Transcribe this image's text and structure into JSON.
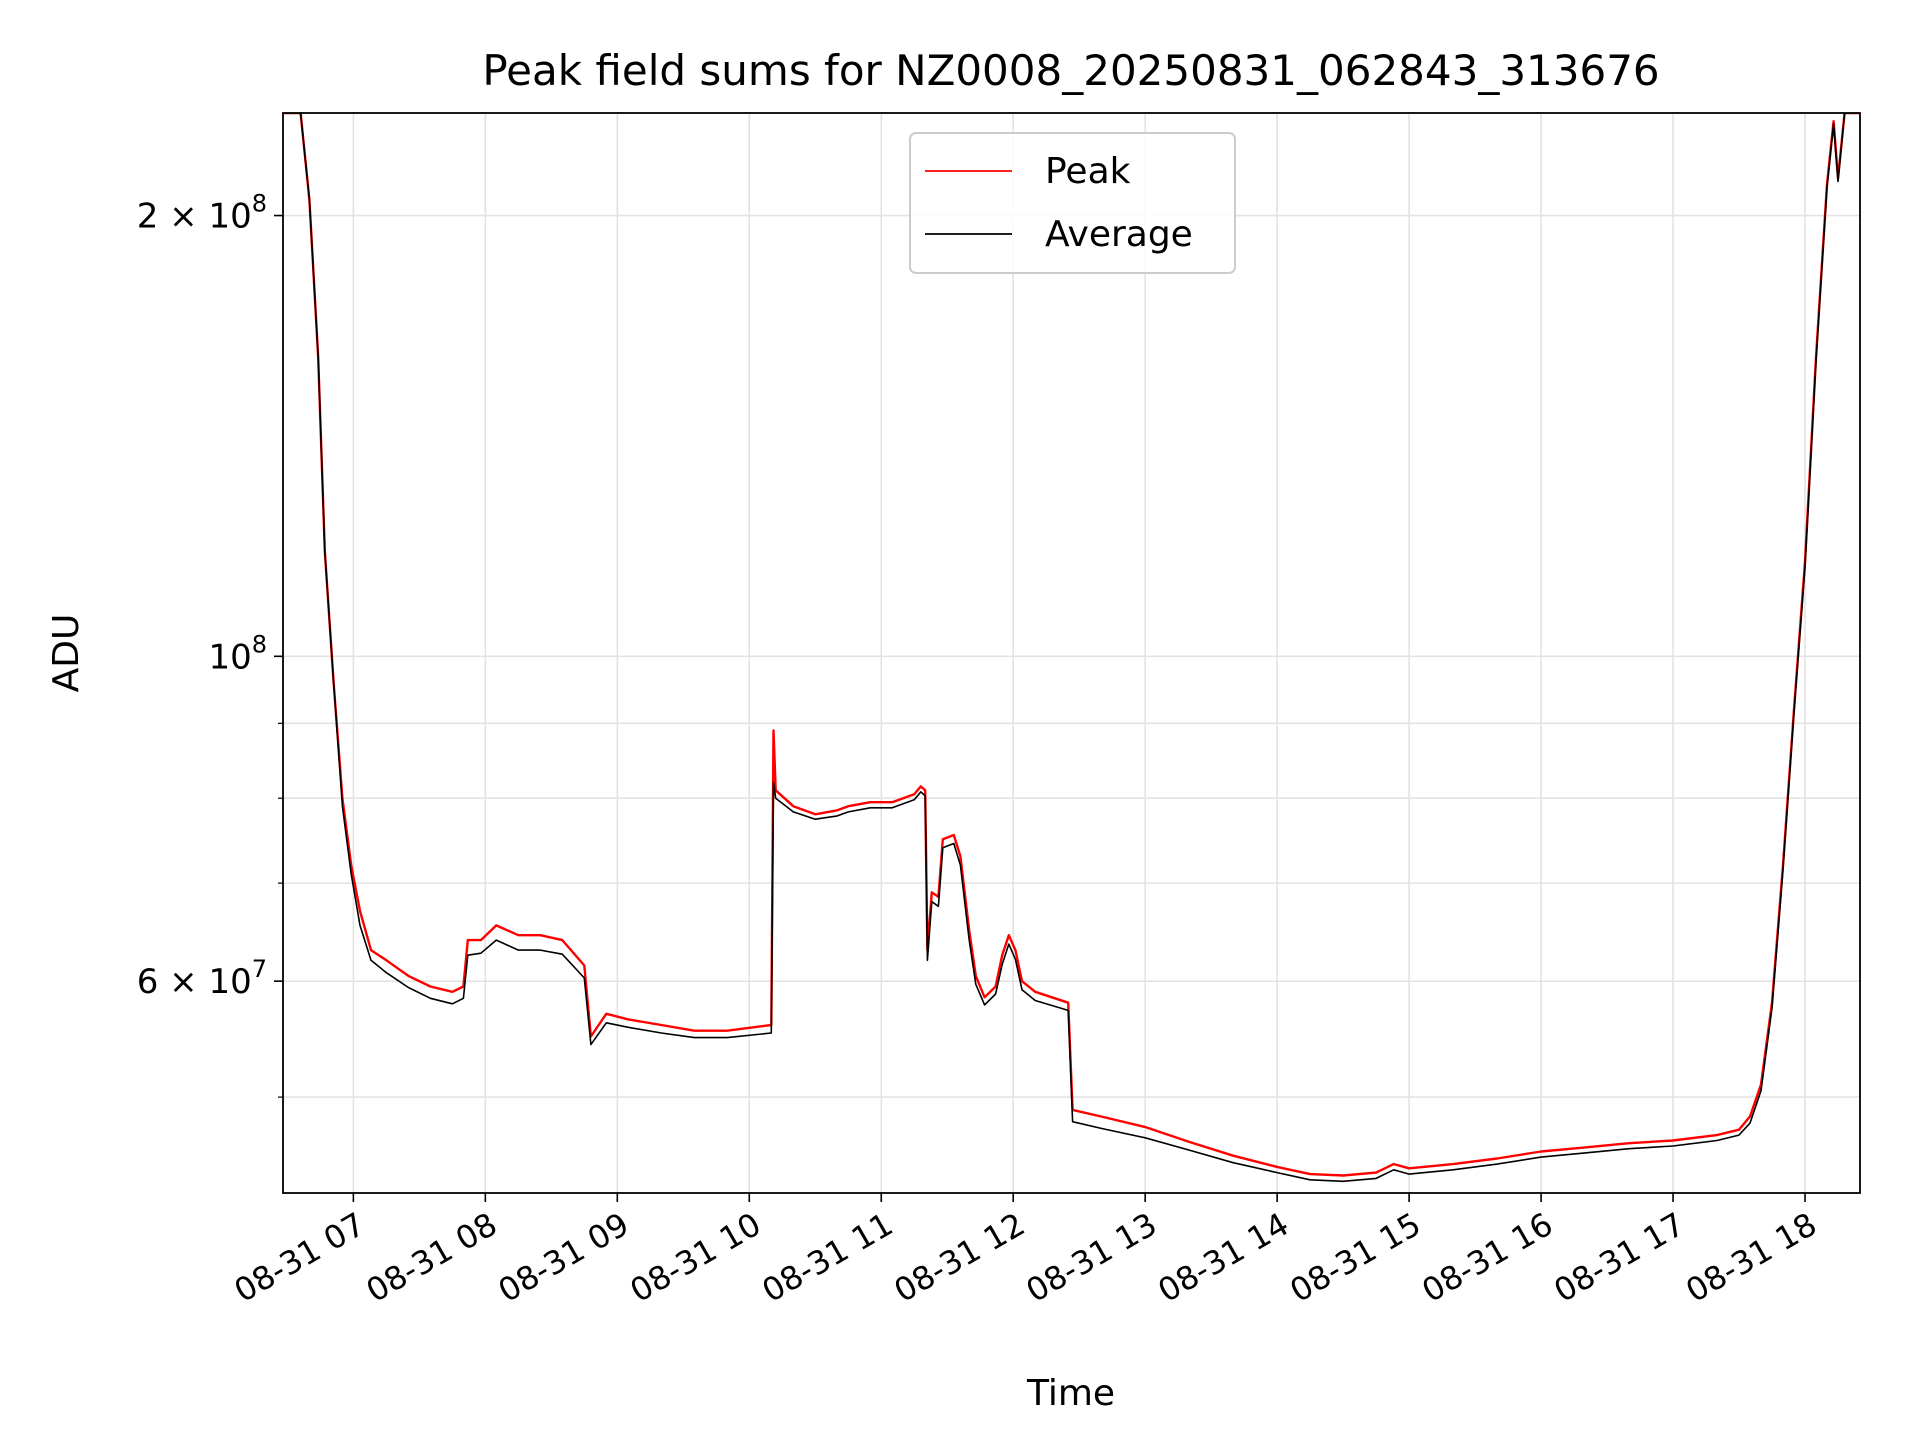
{
  "chart_data": {
    "type": "line",
    "title": "Peak field sums for NZ0008_20250831_062843_313676",
    "xlabel": "Time",
    "ylabel": "ADU",
    "y_scale": "log",
    "grid": true,
    "legend_position": "top-center",
    "x_range": [
      "2025-08-31 06:28",
      "2025-08-31 18:25"
    ],
    "y_range": [
      43000000,
      235000000
    ],
    "x_ticks": [
      {
        "t": "2025-08-31 07:00",
        "label": "08-31 07"
      },
      {
        "t": "2025-08-31 08:00",
        "label": "08-31 08"
      },
      {
        "t": "2025-08-31 09:00",
        "label": "08-31 09"
      },
      {
        "t": "2025-08-31 10:00",
        "label": "08-31 10"
      },
      {
        "t": "2025-08-31 11:00",
        "label": "08-31 11"
      },
      {
        "t": "2025-08-31 12:00",
        "label": "08-31 12"
      },
      {
        "t": "2025-08-31 13:00",
        "label": "08-31 13"
      },
      {
        "t": "2025-08-31 14:00",
        "label": "08-31 14"
      },
      {
        "t": "2025-08-31 15:00",
        "label": "08-31 15"
      },
      {
        "t": "2025-08-31 16:00",
        "label": "08-31 16"
      },
      {
        "t": "2025-08-31 17:00",
        "label": "08-31 17"
      },
      {
        "t": "2025-08-31 18:00",
        "label": "08-31 18"
      }
    ],
    "y_major_ticks": [
      {
        "value": 60000000,
        "base": "6 × 10",
        "exp": "7"
      },
      {
        "value": 100000000,
        "base": "10",
        "exp": "8"
      },
      {
        "value": 200000000,
        "base": "2 × 10",
        "exp": "8"
      }
    ],
    "y_minor_gridlines": [
      50000000,
      70000000,
      80000000,
      90000000
    ],
    "series": [
      {
        "name": "Peak",
        "color": "#ff0000",
        "points": [
          [
            "2025-08-31 06:28",
            235000000
          ],
          [
            "2025-08-31 06:36",
            235000000
          ],
          [
            "2025-08-31 06:40",
            205000000
          ],
          [
            "2025-08-31 06:44",
            160000000
          ],
          [
            "2025-08-31 06:47",
            118000000
          ],
          [
            "2025-08-31 06:51",
            96000000
          ],
          [
            "2025-08-31 06:55",
            80000000
          ],
          [
            "2025-08-31 06:59",
            72000000
          ],
          [
            "2025-08-31 07:03",
            67000000
          ],
          [
            "2025-08-31 07:08",
            63000000
          ],
          [
            "2025-08-31 07:15",
            62000000
          ],
          [
            "2025-08-31 07:25",
            60500000
          ],
          [
            "2025-08-31 07:35",
            59500000
          ],
          [
            "2025-08-31 07:45",
            59000000
          ],
          [
            "2025-08-31 07:50",
            59500000
          ],
          [
            "2025-08-31 07:52",
            64000000
          ],
          [
            "2025-08-31 07:58",
            64000000
          ],
          [
            "2025-08-31 08:05",
            65500000
          ],
          [
            "2025-08-31 08:15",
            64500000
          ],
          [
            "2025-08-31 08:25",
            64500000
          ],
          [
            "2025-08-31 08:35",
            64000000
          ],
          [
            "2025-08-31 08:45",
            61500000
          ],
          [
            "2025-08-31 08:48",
            55000000
          ],
          [
            "2025-08-31 08:55",
            57000000
          ],
          [
            "2025-08-31 09:05",
            56500000
          ],
          [
            "2025-08-31 09:20",
            56000000
          ],
          [
            "2025-08-31 09:35",
            55500000
          ],
          [
            "2025-08-31 09:50",
            55500000
          ],
          [
            "2025-08-31 10:10",
            56000000
          ],
          [
            "2025-08-31 10:11",
            89000000
          ],
          [
            "2025-08-31 10:12",
            81000000
          ],
          [
            "2025-08-31 10:20",
            79000000
          ],
          [
            "2025-08-31 10:30",
            78000000
          ],
          [
            "2025-08-31 10:40",
            78500000
          ],
          [
            "2025-08-31 10:45",
            79000000
          ],
          [
            "2025-08-31 10:55",
            79500000
          ],
          [
            "2025-08-31 11:05",
            79500000
          ],
          [
            "2025-08-31 11:15",
            80500000
          ],
          [
            "2025-08-31 11:18",
            81500000
          ],
          [
            "2025-08-31 11:20",
            81000000
          ],
          [
            "2025-08-31 11:21",
            63000000
          ],
          [
            "2025-08-31 11:23",
            69000000
          ],
          [
            "2025-08-31 11:26",
            68500000
          ],
          [
            "2025-08-31 11:28",
            75000000
          ],
          [
            "2025-08-31 11:33",
            75500000
          ],
          [
            "2025-08-31 11:36",
            73000000
          ],
          [
            "2025-08-31 11:40",
            65000000
          ],
          [
            "2025-08-31 11:43",
            60500000
          ],
          [
            "2025-08-31 11:47",
            58500000
          ],
          [
            "2025-08-31 11:52",
            59500000
          ],
          [
            "2025-08-31 11:55",
            62500000
          ],
          [
            "2025-08-31 11:58",
            64500000
          ],
          [
            "2025-08-31 12:01",
            63000000
          ],
          [
            "2025-08-31 12:04",
            60000000
          ],
          [
            "2025-08-31 12:10",
            59000000
          ],
          [
            "2025-08-31 12:25",
            58000000
          ],
          [
            "2025-08-31 12:27",
            49000000
          ],
          [
            "2025-08-31 12:40",
            48500000
          ],
          [
            "2025-08-31 13:00",
            47700000
          ],
          [
            "2025-08-31 13:20",
            46600000
          ],
          [
            "2025-08-31 13:40",
            45600000
          ],
          [
            "2025-08-31 14:00",
            44800000
          ],
          [
            "2025-08-31 14:15",
            44300000
          ],
          [
            "2025-08-31 14:30",
            44200000
          ],
          [
            "2025-08-31 14:45",
            44400000
          ],
          [
            "2025-08-31 14:53",
            45000000
          ],
          [
            "2025-08-31 15:00",
            44700000
          ],
          [
            "2025-08-31 15:20",
            45000000
          ],
          [
            "2025-08-31 15:40",
            45400000
          ],
          [
            "2025-08-31 16:00",
            45900000
          ],
          [
            "2025-08-31 16:20",
            46200000
          ],
          [
            "2025-08-31 16:40",
            46500000
          ],
          [
            "2025-08-31 17:00",
            46700000
          ],
          [
            "2025-08-31 17:20",
            47100000
          ],
          [
            "2025-08-31 17:30",
            47500000
          ],
          [
            "2025-08-31 17:35",
            48500000
          ],
          [
            "2025-08-31 17:40",
            51000000
          ],
          [
            "2025-08-31 17:45",
            58000000
          ],
          [
            "2025-08-31 17:50",
            72000000
          ],
          [
            "2025-08-31 17:55",
            92000000
          ],
          [
            "2025-08-31 18:00",
            116000000
          ],
          [
            "2025-08-31 18:05",
            160000000
          ],
          [
            "2025-08-31 18:10",
            210000000
          ],
          [
            "2025-08-31 18:13",
            232000000
          ],
          [
            "2025-08-31 18:15",
            212000000
          ],
          [
            "2025-08-31 18:18",
            235000000
          ],
          [
            "2025-08-31 18:25",
            235000000
          ]
        ]
      },
      {
        "name": "Average",
        "color": "#000000",
        "points": [
          [
            "2025-08-31 06:28",
            235000000
          ],
          [
            "2025-08-31 06:36",
            235000000
          ],
          [
            "2025-08-31 06:40",
            205000000
          ],
          [
            "2025-08-31 06:44",
            160000000
          ],
          [
            "2025-08-31 06:47",
            118000000
          ],
          [
            "2025-08-31 06:51",
            96000000
          ],
          [
            "2025-08-31 06:55",
            79000000
          ],
          [
            "2025-08-31 06:59",
            71000000
          ],
          [
            "2025-08-31 07:03",
            65500000
          ],
          [
            "2025-08-31 07:08",
            62000000
          ],
          [
            "2025-08-31 07:15",
            60800000
          ],
          [
            "2025-08-31 07:25",
            59400000
          ],
          [
            "2025-08-31 07:35",
            58400000
          ],
          [
            "2025-08-31 07:45",
            57900000
          ],
          [
            "2025-08-31 07:50",
            58400000
          ],
          [
            "2025-08-31 07:52",
            62500000
          ],
          [
            "2025-08-31 07:58",
            62700000
          ],
          [
            "2025-08-31 08:05",
            64000000
          ],
          [
            "2025-08-31 08:15",
            63000000
          ],
          [
            "2025-08-31 08:25",
            63000000
          ],
          [
            "2025-08-31 08:35",
            62600000
          ],
          [
            "2025-08-31 08:45",
            60300000
          ],
          [
            "2025-08-31 08:48",
            54300000
          ],
          [
            "2025-08-31 08:55",
            56200000
          ],
          [
            "2025-08-31 09:05",
            55800000
          ],
          [
            "2025-08-31 09:20",
            55300000
          ],
          [
            "2025-08-31 09:35",
            54900000
          ],
          [
            "2025-08-31 09:50",
            54900000
          ],
          [
            "2025-08-31 10:10",
            55300000
          ],
          [
            "2025-08-31 10:11",
            82000000
          ],
          [
            "2025-08-31 10:12",
            80000000
          ],
          [
            "2025-08-31 10:20",
            78300000
          ],
          [
            "2025-08-31 10:30",
            77400000
          ],
          [
            "2025-08-31 10:40",
            77800000
          ],
          [
            "2025-08-31 10:45",
            78300000
          ],
          [
            "2025-08-31 10:55",
            78800000
          ],
          [
            "2025-08-31 11:05",
            78800000
          ],
          [
            "2025-08-31 11:15",
            79800000
          ],
          [
            "2025-08-31 11:18",
            80800000
          ],
          [
            "2025-08-31 11:20",
            80300000
          ],
          [
            "2025-08-31 11:21",
            62000000
          ],
          [
            "2025-08-31 11:23",
            68000000
          ],
          [
            "2025-08-31 11:26",
            67500000
          ],
          [
            "2025-08-31 11:28",
            74000000
          ],
          [
            "2025-08-31 11:33",
            74500000
          ],
          [
            "2025-08-31 11:36",
            72000000
          ],
          [
            "2025-08-31 11:40",
            64000000
          ],
          [
            "2025-08-31 11:43",
            59700000
          ],
          [
            "2025-08-31 11:47",
            57800000
          ],
          [
            "2025-08-31 11:52",
            58800000
          ],
          [
            "2025-08-31 11:55",
            61600000
          ],
          [
            "2025-08-31 11:58",
            63600000
          ],
          [
            "2025-08-31 12:01",
            62100000
          ],
          [
            "2025-08-31 12:04",
            59200000
          ],
          [
            "2025-08-31 12:10",
            58200000
          ],
          [
            "2025-08-31 12:25",
            57300000
          ],
          [
            "2025-08-31 12:27",
            48100000
          ],
          [
            "2025-08-31 12:40",
            47600000
          ],
          [
            "2025-08-31 13:00",
            46900000
          ],
          [
            "2025-08-31 13:20",
            46000000
          ],
          [
            "2025-08-31 13:40",
            45100000
          ],
          [
            "2025-08-31 14:00",
            44400000
          ],
          [
            "2025-08-31 14:15",
            43900000
          ],
          [
            "2025-08-31 14:30",
            43800000
          ],
          [
            "2025-08-31 14:45",
            44000000
          ],
          [
            "2025-08-31 14:53",
            44600000
          ],
          [
            "2025-08-31 15:00",
            44300000
          ],
          [
            "2025-08-31 15:20",
            44600000
          ],
          [
            "2025-08-31 15:40",
            45000000
          ],
          [
            "2025-08-31 16:00",
            45500000
          ],
          [
            "2025-08-31 16:20",
            45800000
          ],
          [
            "2025-08-31 16:40",
            46100000
          ],
          [
            "2025-08-31 17:00",
            46300000
          ],
          [
            "2025-08-31 17:20",
            46700000
          ],
          [
            "2025-08-31 17:30",
            47100000
          ],
          [
            "2025-08-31 17:35",
            48000000
          ],
          [
            "2025-08-31 17:40",
            50500000
          ],
          [
            "2025-08-31 17:45",
            57500000
          ],
          [
            "2025-08-31 17:50",
            71500000
          ],
          [
            "2025-08-31 17:55",
            91500000
          ],
          [
            "2025-08-31 18:00",
            115000000
          ],
          [
            "2025-08-31 18:05",
            159000000
          ],
          [
            "2025-08-31 18:10",
            209000000
          ],
          [
            "2025-08-31 18:13",
            231000000
          ],
          [
            "2025-08-31 18:15",
            211000000
          ],
          [
            "2025-08-31 18:18",
            235000000
          ],
          [
            "2025-08-31 18:25",
            235000000
          ]
        ]
      }
    ]
  }
}
